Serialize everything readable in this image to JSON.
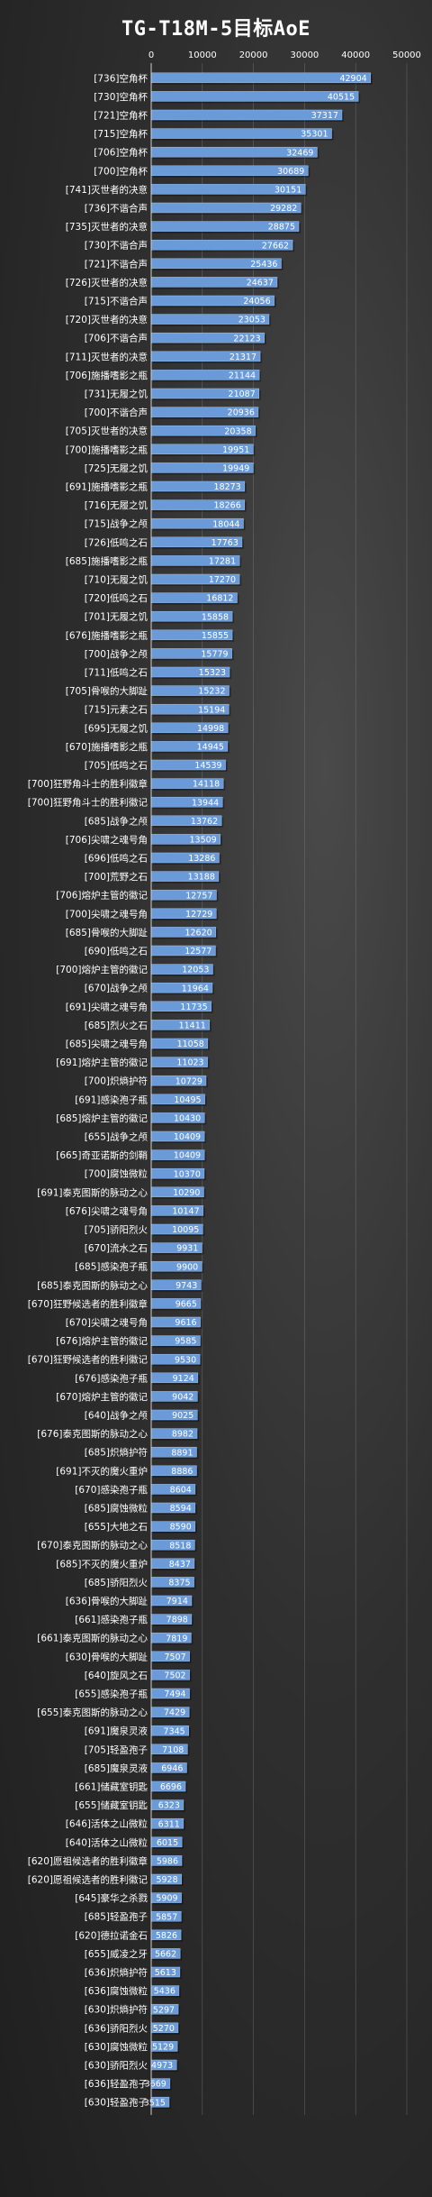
{
  "chart_data": {
    "type": "bar",
    "orientation": "horizontal",
    "title": "TG-T18M-5目标AoE",
    "xlim": [
      0,
      50000
    ],
    "xticks": [
      0,
      10000,
      20000,
      30000,
      40000,
      50000
    ],
    "grid": true,
    "bar_color": "#6a9bd8",
    "categories": [
      "[736]空角杯",
      "[730]空角杯",
      "[721]空角杯",
      "[715]空角杯",
      "[706]空角杯",
      "[700]空角杯",
      "[741]灭世者的决意",
      "[736]不谐合声",
      "[735]灭世者的决意",
      "[730]不谐合声",
      "[721]不谐合声",
      "[726]灭世者的决意",
      "[715]不谐合声",
      "[720]灭世者的决意",
      "[706]不谐合声",
      "[711]灭世者的决意",
      "[706]施播嗜影之瓶",
      "[731]无履之饥",
      "[700]不谐合声",
      "[705]灭世者的决意",
      "[700]施播嗜影之瓶",
      "[725]无履之饥",
      "[691]施播嗜影之瓶",
      "[716]无履之饥",
      "[715]战争之颅",
      "[726]低鸣之石",
      "[685]施播嗜影之瓶",
      "[710]无履之饥",
      "[720]低鸣之石",
      "[701]无履之饥",
      "[676]施播嗜影之瓶",
      "[700]战争之颅",
      "[711]低鸣之石",
      "[705]骨喉的大脚趾",
      "[715]元素之石",
      "[695]无履之饥",
      "[670]施播嗜影之瓶",
      "[705]低鸣之石",
      "[700]狂野角斗士的胜利徽章",
      "[700]狂野角斗士的胜利徽记",
      "[685]战争之颅",
      "[706]尖啸之魂号角",
      "[696]低鸣之石",
      "[700]荒野之石",
      "[706]熔炉主管的徽记",
      "[700]尖啸之魂号角",
      "[685]骨喉的大脚趾",
      "[690]低鸣之石",
      "[700]熔炉主管的徽记",
      "[670]战争之颅",
      "[691]尖啸之魂号角",
      "[685]烈火之石",
      "[685]尖啸之魂号角",
      "[691]熔炉主管的徽记",
      "[700]炽熵护符",
      "[691]感染孢子瓶",
      "[685]熔炉主管的徽记",
      "[655]战争之颅",
      "[665]奇亚诺斯的剑鞘",
      "[700]腐蚀微粒",
      "[691]泰克图斯的脉动之心",
      "[676]尖啸之魂号角",
      "[705]骄阳烈火",
      "[670]流水之石",
      "[685]感染孢子瓶",
      "[685]泰克图斯的脉动之心",
      "[670]狂野候选者的胜利徽章",
      "[670]尖啸之魂号角",
      "[676]熔炉主管的徽记",
      "[670]狂野候选者的胜利徽记",
      "[676]感染孢子瓶",
      "[670]熔炉主管的徽记",
      "[640]战争之颅",
      "[676]泰克图斯的脉动之心",
      "[685]炽熵护符",
      "[691]不灭的魔火重炉",
      "[670]感染孢子瓶",
      "[685]腐蚀微粒",
      "[655]大地之石",
      "[670]泰克图斯的脉动之心",
      "[685]不灭的魔火重炉",
      "[685]骄阳烈火",
      "[636]骨喉的大脚趾",
      "[661]感染孢子瓶",
      "[661]泰克图斯的脉动之心",
      "[630]骨喉的大脚趾",
      "[640]旋风之石",
      "[655]感染孢子瓶",
      "[655]泰克图斯的脉动之心",
      "[691]魔泉灵液",
      "[705]轻盈孢子",
      "[685]魔泉灵液",
      "[661]储藏室钥匙",
      "[655]储藏室钥匙",
      "[646]活体之山微粒",
      "[640]活体之山微粒",
      "[620]愿祖候选者的胜利徽章",
      "[620]愿祖候选者的胜利徽记",
      "[645]豪华之杀戮",
      "[685]轻盈孢子",
      "[620]德拉诺金石",
      "[655]威凌之牙",
      "[636]炽熵护符",
      "[636]腐蚀微粒",
      "[630]炽熵护符",
      "[636]骄阳烈火",
      "[630]腐蚀微粒",
      "[630]骄阳烈火",
      "[636]轻盈孢子",
      "[630]轻盈孢子"
    ],
    "values": [
      42904,
      40515,
      37317,
      35301,
      32469,
      30689,
      30151,
      29282,
      28875,
      27662,
      25436,
      24637,
      24056,
      23053,
      22123,
      21317,
      21144,
      21087,
      20936,
      20358,
      19951,
      19949,
      18273,
      18266,
      18044,
      17763,
      17281,
      17270,
      16812,
      15858,
      15855,
      15779,
      15323,
      15232,
      15194,
      14998,
      14945,
      14539,
      14118,
      13944,
      13762,
      13509,
      13286,
      13188,
      12757,
      12729,
      12620,
      12577,
      12053,
      11964,
      11735,
      11411,
      11058,
      11023,
      10729,
      10495,
      10430,
      10409,
      10409,
      10370,
      10290,
      10147,
      10095,
      9931,
      9900,
      9743,
      9665,
      9616,
      9585,
      9530,
      9124,
      9042,
      9025,
      8982,
      8891,
      8886,
      8604,
      8594,
      8590,
      8518,
      8437,
      8375,
      7914,
      7898,
      7819,
      7507,
      7502,
      7494,
      7429,
      7345,
      7108,
      6946,
      6696,
      6323,
      6311,
      6015,
      5986,
      5928,
      5909,
      5857,
      5826,
      5662,
      5613,
      5436,
      5297,
      5270,
      5129,
      4973,
      3669,
      3515
    ]
  }
}
